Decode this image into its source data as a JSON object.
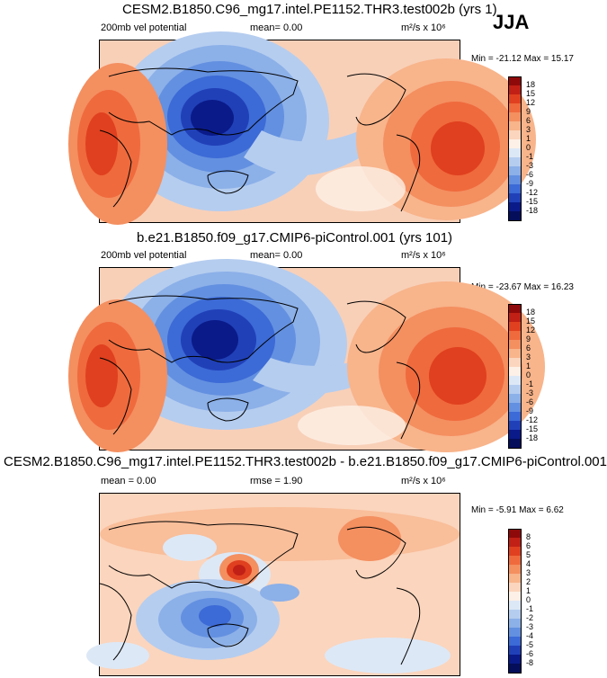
{
  "season": "JJA",
  "panels": [
    {
      "title": "CESM2.B1850.C96_mg17.intel.PE1152.THR3.test002b (yrs 1)",
      "left_label": "200mb vel potential",
      "mid_label": "mean=  0.00",
      "units_label": "m²/s x 10⁶",
      "minmax": "Min = -21.12 Max = 15.17"
    },
    {
      "title": "b.e21.B1850.f09_g17.CMIP6-piControl.001 (yrs 101)",
      "left_label": "200mb vel potential",
      "mid_label": "mean=  0.00",
      "units_label": "m²/s x 10⁶",
      "minmax": "Min = -23.67 Max = 16.23"
    },
    {
      "title": "CESM2.B1850.C96_mg17.intel.PE1152.THR3.test002b - b.e21.B1850.f09_g17.CMIP6-piControl.001",
      "left_label": "mean =  0.00",
      "mid_label": "rmse =  1.90",
      "units_label": "m²/s x 10⁶",
      "minmax": "Min = -5.91 Max =  6.62"
    }
  ],
  "chart_data": [
    {
      "type": "heatmap",
      "title": "CESM2.B1850.C96_mg17.intel.PE1152.THR3.test002b (yrs 1)",
      "variable": "200mb vel potential",
      "mean": 0.0,
      "min": -21.12,
      "max": 15.17,
      "colorbar_levels": [
        18,
        15,
        12,
        9,
        6,
        3,
        1,
        0,
        -1,
        -3,
        -6,
        -9,
        -12,
        -15,
        -18
      ],
      "colors": [
        "#8e0a0a",
        "#c02015",
        "#e0401f",
        "#ef6a3d",
        "#f48f60",
        "#f8b48b",
        "#fbd5bd",
        "#fdf0e6",
        "#dde8f6",
        "#b5cdef",
        "#8cb0e8",
        "#6390e0",
        "#3c6ad6",
        "#2040b8",
        "#0a1a88",
        "#050e5a"
      ]
    },
    {
      "type": "heatmap",
      "title": "b.e21.B1850.f09_g17.CMIP6-piControl.001 (yrs 101)",
      "variable": "200mb vel potential",
      "mean": 0.0,
      "min": -23.67,
      "max": 16.23,
      "colorbar_levels": [
        18,
        15,
        12,
        9,
        6,
        3,
        1,
        0,
        -1,
        -3,
        -6,
        -9,
        -12,
        -15,
        -18
      ],
      "colors": [
        "#8e0a0a",
        "#c02015",
        "#e0401f",
        "#ef6a3d",
        "#f48f60",
        "#f8b48b",
        "#fbd5bd",
        "#fdf0e6",
        "#dde8f6",
        "#b5cdef",
        "#8cb0e8",
        "#6390e0",
        "#3c6ad6",
        "#2040b8",
        "#0a1a88",
        "#050e5a"
      ]
    },
    {
      "type": "heatmap",
      "title": "CESM2.B1850.C96_mg17.intel.PE1152.THR3.test002b - b.e21.B1850.f09_g17.CMIP6-piControl.001",
      "mean": 0.0,
      "rmse": 1.9,
      "min": -5.91,
      "max": 6.62,
      "colorbar_levels": [
        8,
        6,
        5,
        4,
        3,
        2,
        1,
        0,
        -1,
        -2,
        -3,
        -4,
        -5,
        -6,
        -8
      ],
      "colors": [
        "#8e0a0a",
        "#c02015",
        "#e0401f",
        "#ef6a3d",
        "#f48f60",
        "#f8b48b",
        "#fbd5bd",
        "#fdf0e6",
        "#dde8f6",
        "#b5cdef",
        "#8cb0e8",
        "#6390e0",
        "#3c6ad6",
        "#2040b8",
        "#0a1a88",
        "#050e5a"
      ]
    }
  ]
}
